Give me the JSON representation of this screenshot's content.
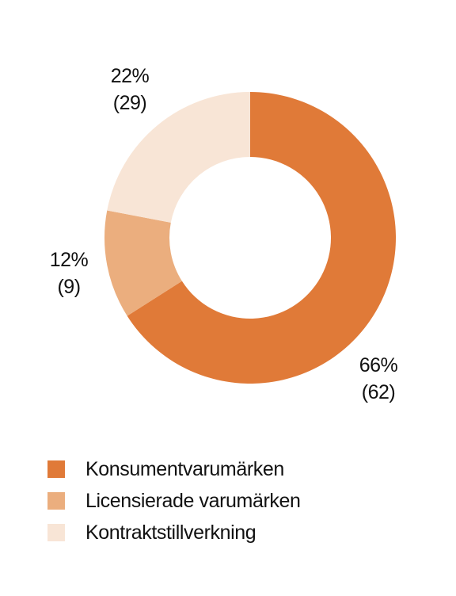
{
  "chart_data": {
    "type": "pie",
    "donut": true,
    "categories": [
      "Konsumentvarumärken",
      "Licensierade varumärken",
      "Kontraktstillverkning"
    ],
    "values": [
      66,
      12,
      22
    ],
    "value_unit": "%",
    "counts": [
      62,
      9,
      29
    ],
    "slices": [
      {
        "name": "Konsumentvarumärken",
        "percent": 66,
        "percent_label": "66%",
        "count_label": "(62)",
        "color": "#E07A38"
      },
      {
        "name": "Licensierade varumärken",
        "percent": 12,
        "percent_label": "12%",
        "count_label": "(9)",
        "color": "#EBAE7E"
      },
      {
        "name": "Kontraktstillverkning",
        "percent": 22,
        "percent_label": "22%",
        "count_label": "(29)",
        "color": "#F8E5D6"
      }
    ],
    "legend_position": "bottom-left",
    "start_angle_deg": 0,
    "direction": "clockwise"
  }
}
